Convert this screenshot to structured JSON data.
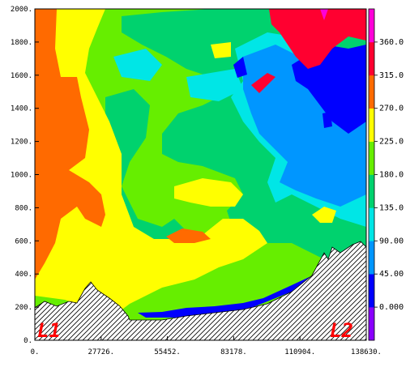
{
  "chart_data": {
    "type": "heatmap",
    "title": "",
    "xlabel": "",
    "ylabel": "",
    "xlim": [
      0,
      138630
    ],
    "ylim": [
      0,
      2000
    ],
    "x_ticks": [
      "0.",
      "27726.",
      "55452.",
      "83178.",
      "110904.",
      "138630."
    ],
    "y_ticks": [
      "0.",
      "200.",
      "400.",
      "600.",
      "800.",
      "1000.",
      "1200.",
      "1400.",
      "1600.",
      "1800.",
      "2000."
    ],
    "colorbar": {
      "labels": [
        "0.000",
        "45.00",
        "90.00",
        "135.0",
        "180.0",
        "225.0",
        "270.0",
        "315.0",
        "360.0"
      ],
      "band_colors": [
        "#8a00ff",
        "#0000ff",
        "#0096ff",
        "#00e6e6",
        "#00d26e",
        "#66ee00",
        "#ffff00",
        "#ff6a00",
        "#ff0030",
        "#ff00d8"
      ]
    },
    "palette": {
      "magenta": "#ff00d8",
      "red": "#ff0030",
      "orange": "#ff6a00",
      "yellow": "#ffff00",
      "light_green": "#66ee00",
      "green": "#00d26e",
      "cyan": "#00e6e6",
      "sky_blue": "#0096ff",
      "blue": "#0000ff"
    },
    "annotations": {
      "left": "L1",
      "right": "L2",
      "color": "#ff0000"
    }
  }
}
